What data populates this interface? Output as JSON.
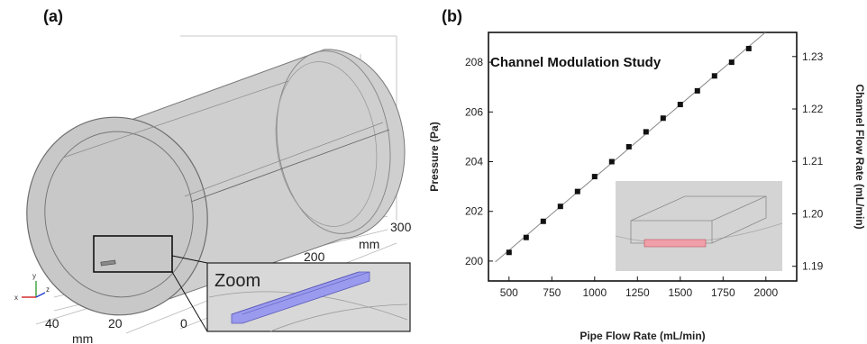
{
  "panel_a": {
    "label": "(a)",
    "zoom_label": "Zoom",
    "axis_ticks_depth": [
      "300",
      "200"
    ],
    "axis_unit_depth": "mm",
    "axis_ticks_width": [
      "40",
      "20",
      "0"
    ],
    "axis_unit_width": "mm",
    "triad": {
      "x": "x",
      "y": "y",
      "z": "z"
    },
    "colors": {
      "pipe_fill": "#c8c8c8",
      "channel_fill": "#9a9aee",
      "inset_bg": "#d8d8d8"
    }
  },
  "chart_data": {
    "type": "scatter",
    "label": "(b)",
    "title": "Channel Modulation Study",
    "xlabel": "Pipe Flow Rate (mL/min)",
    "ylabel": "Pressure (Pa)",
    "y2label": "Channel Flow Rate (mL/min)",
    "xlim": [
      380,
      2180
    ],
    "ylim": [
      199.2,
      209.2
    ],
    "y2lim": [
      1.1872,
      1.2346
    ],
    "xticks": [
      500,
      750,
      1000,
      1250,
      1500,
      1750,
      2000
    ],
    "yticks": [
      200,
      202,
      204,
      206,
      208
    ],
    "y2ticks": [
      1.19,
      1.2,
      1.21,
      1.22,
      1.23
    ],
    "x": [
      500,
      600,
      700,
      800,
      900,
      1000,
      1100,
      1200,
      1300,
      1400,
      1500,
      1600,
      1700,
      1800,
      1900
    ],
    "y": [
      200.35,
      200.95,
      201.6,
      202.2,
      202.8,
      203.4,
      204.0,
      204.6,
      205.2,
      205.75,
      206.3,
      206.85,
      207.45,
      208.0,
      208.55
    ],
    "grid": false,
    "colors": {
      "marker": "#111111",
      "line": "#888888",
      "inset_bg": "#d4d4d4",
      "inset_highlight": "#f0a0a8"
    }
  }
}
